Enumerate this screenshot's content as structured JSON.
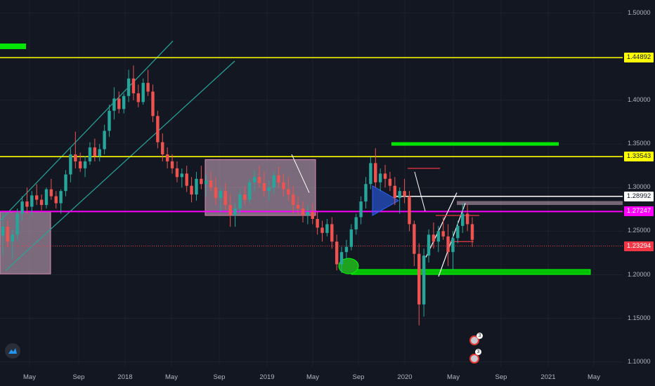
{
  "chart_data": {
    "type": "candlestick",
    "ylim": [
      1.095,
      1.515
    ],
    "y_ticks": [
      "1.50000",
      "1.45000",
      "1.40000",
      "1.35000",
      "1.30000",
      "1.25000",
      "1.20000",
      "1.15000",
      "1.10000"
    ],
    "x_ticks": [
      "May",
      "Sep",
      "2018",
      "May",
      "Sep",
      "2019",
      "May",
      "Sep",
      "2020",
      "May",
      "Sep",
      "2021",
      "May"
    ],
    "candles": [
      [
        1.245,
        1.272,
        1.222,
        1.255
      ],
      [
        1.255,
        1.262,
        1.232,
        1.238
      ],
      [
        1.238,
        1.252,
        1.218,
        1.246
      ],
      [
        1.246,
        1.276,
        1.24,
        1.27
      ],
      [
        1.27,
        1.29,
        1.262,
        1.284
      ],
      [
        1.284,
        1.3,
        1.27,
        1.278
      ],
      [
        1.278,
        1.296,
        1.268,
        1.291
      ],
      [
        1.291,
        1.304,
        1.28,
        1.286
      ],
      [
        1.286,
        1.292,
        1.274,
        1.28
      ],
      [
        1.28,
        1.3,
        1.276,
        1.298
      ],
      [
        1.298,
        1.31,
        1.286,
        1.29
      ],
      [
        1.29,
        1.296,
        1.276,
        1.282
      ],
      [
        1.282,
        1.298,
        1.27,
        1.296
      ],
      [
        1.296,
        1.32,
        1.29,
        1.315
      ],
      [
        1.315,
        1.345,
        1.306,
        1.338
      ],
      [
        1.338,
        1.364,
        1.322,
        1.33
      ],
      [
        1.33,
        1.34,
        1.318,
        1.322
      ],
      [
        1.322,
        1.336,
        1.312,
        1.33
      ],
      [
        1.33,
        1.352,
        1.326,
        1.346
      ],
      [
        1.346,
        1.356,
        1.33,
        1.336
      ],
      [
        1.336,
        1.35,
        1.33,
        1.344
      ],
      [
        1.344,
        1.372,
        1.338,
        1.365
      ],
      [
        1.365,
        1.395,
        1.358,
        1.388
      ],
      [
        1.388,
        1.415,
        1.378,
        1.402
      ],
      [
        1.402,
        1.41,
        1.385,
        1.39
      ],
      [
        1.39,
        1.408,
        1.385,
        1.405
      ],
      [
        1.405,
        1.435,
        1.398,
        1.425
      ],
      [
        1.425,
        1.44,
        1.4,
        1.408
      ],
      [
        1.408,
        1.418,
        1.392,
        1.398
      ],
      [
        1.398,
        1.425,
        1.395,
        1.42
      ],
      [
        1.42,
        1.435,
        1.405,
        1.41
      ],
      [
        1.41,
        1.418,
        1.375,
        1.382
      ],
      [
        1.382,
        1.388,
        1.345,
        1.352
      ],
      [
        1.352,
        1.362,
        1.33,
        1.338
      ],
      [
        1.338,
        1.346,
        1.322,
        1.33
      ],
      [
        1.33,
        1.338,
        1.316,
        1.322
      ],
      [
        1.322,
        1.33,
        1.306,
        1.312
      ],
      [
        1.312,
        1.322,
        1.3,
        1.316
      ],
      [
        1.316,
        1.325,
        1.295,
        1.302
      ],
      [
        1.302,
        1.312,
        1.283,
        1.292
      ],
      [
        1.292,
        1.318,
        1.285,
        1.31
      ],
      [
        1.31,
        1.325,
        1.298,
        1.304
      ],
      [
        1.304,
        1.315,
        1.29,
        1.308
      ],
      [
        1.308,
        1.318,
        1.296,
        1.3
      ],
      [
        1.3,
        1.312,
        1.28,
        1.288
      ],
      [
        1.288,
        1.3,
        1.272,
        1.296
      ],
      [
        1.296,
        1.305,
        1.275,
        1.28
      ],
      [
        1.28,
        1.292,
        1.255,
        1.268
      ],
      [
        1.268,
        1.282,
        1.255,
        1.276
      ],
      [
        1.276,
        1.298,
        1.27,
        1.292
      ],
      [
        1.292,
        1.302,
        1.28,
        1.286
      ],
      [
        1.286,
        1.31,
        1.282,
        1.306
      ],
      [
        1.306,
        1.32,
        1.295,
        1.312
      ],
      [
        1.312,
        1.325,
        1.3,
        1.305
      ],
      [
        1.305,
        1.318,
        1.29,
        1.296
      ],
      [
        1.296,
        1.308,
        1.285,
        1.3
      ],
      [
        1.3,
        1.318,
        1.292,
        1.314
      ],
      [
        1.314,
        1.324,
        1.3,
        1.306
      ],
      [
        1.306,
        1.316,
        1.29,
        1.298
      ],
      [
        1.298,
        1.312,
        1.285,
        1.292
      ],
      [
        1.292,
        1.302,
        1.27,
        1.28
      ],
      [
        1.28,
        1.29,
        1.268,
        1.276
      ],
      [
        1.276,
        1.284,
        1.26,
        1.268
      ],
      [
        1.268,
        1.28,
        1.258,
        1.272
      ],
      [
        1.272,
        1.282,
        1.258,
        1.264
      ],
      [
        1.264,
        1.272,
        1.246,
        1.254
      ],
      [
        1.254,
        1.262,
        1.238,
        1.248
      ],
      [
        1.248,
        1.264,
        1.244,
        1.258
      ],
      [
        1.258,
        1.266,
        1.23,
        1.238
      ],
      [
        1.238,
        1.246,
        1.205,
        1.212
      ],
      [
        1.212,
        1.232,
        1.202,
        1.226
      ],
      [
        1.226,
        1.24,
        1.218,
        1.232
      ],
      [
        1.232,
        1.258,
        1.228,
        1.252
      ],
      [
        1.252,
        1.27,
        1.246,
        1.266
      ],
      [
        1.266,
        1.29,
        1.258,
        1.284
      ],
      [
        1.284,
        1.312,
        1.276,
        1.304
      ],
      [
        1.304,
        1.335,
        1.298,
        1.328
      ],
      [
        1.328,
        1.345,
        1.3,
        1.306
      ],
      [
        1.306,
        1.322,
        1.296,
        1.316
      ],
      [
        1.316,
        1.326,
        1.3,
        1.31
      ],
      [
        1.31,
        1.318,
        1.296,
        1.302
      ],
      [
        1.302,
        1.312,
        1.28,
        1.288
      ],
      [
        1.288,
        1.3,
        1.27,
        1.296
      ],
      [
        1.296,
        1.31,
        1.282,
        1.29
      ],
      [
        1.29,
        1.296,
        1.25,
        1.258
      ],
      [
        1.258,
        1.262,
        1.21,
        1.224
      ],
      [
        1.224,
        1.236,
        1.142,
        1.166
      ],
      [
        1.166,
        1.23,
        1.152,
        1.222
      ],
      [
        1.222,
        1.252,
        1.214,
        1.246
      ],
      [
        1.246,
        1.26,
        1.23,
        1.238
      ],
      [
        1.238,
        1.256,
        1.226,
        1.25
      ],
      [
        1.25,
        1.266,
        1.24,
        1.244
      ],
      [
        1.244,
        1.258,
        1.21,
        1.226
      ],
      [
        1.226,
        1.25,
        1.205,
        1.242
      ],
      [
        1.242,
        1.262,
        1.236,
        1.256
      ],
      [
        1.256,
        1.282,
        1.248,
        1.27
      ],
      [
        1.27,
        1.28,
        1.25,
        1.258
      ],
      [
        1.258,
        1.266,
        1.232,
        1.24
      ]
    ],
    "levels": [
      {
        "price": 1.44892,
        "label": "1.44892",
        "color": "#ffff00",
        "tag_bg": "#ffff00",
        "tag_fg": "#131722"
      },
      {
        "price": 1.33543,
        "label": "1.33543",
        "color": "#ffff00",
        "tag_bg": "#ffff00",
        "tag_fg": "#131722"
      },
      {
        "price": 1.28992,
        "label": "1.28992",
        "color": "#ffffff",
        "tag_bg": "#ffffff",
        "tag_fg": "#131722"
      },
      {
        "price": 1.27247,
        "label": "1.27247",
        "color": "#ff00ff",
        "tag_bg": "#ff00ff",
        "tag_fg": "#ffffff"
      },
      {
        "price": 1.23294,
        "label": "1.23294",
        "color": "#f23645",
        "tag_bg": "#f23645",
        "tag_fg": "#ffffff"
      }
    ],
    "event_counts": [
      "3",
      "3"
    ],
    "colors": {
      "up": "#26a69a",
      "down": "#ef5350",
      "background": "#131722",
      "grid": "#1e222d"
    }
  }
}
